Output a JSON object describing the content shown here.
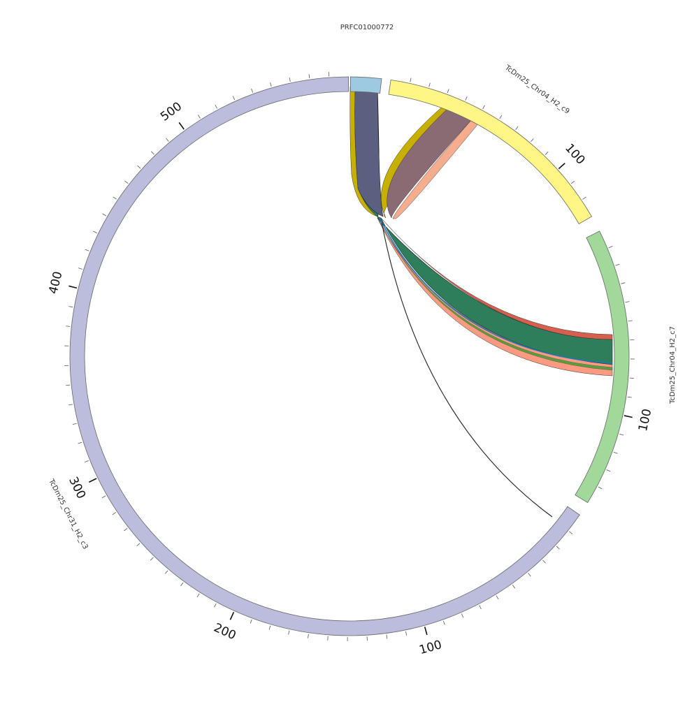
{
  "contigs": [
    {
      "name": "PRFC01000772",
      "color": "#9ecae1",
      "ticks": []
    },
    {
      "name": "TcDm25_Chr04_H2_c9",
      "color": "#fff685",
      "ticks": [
        {
          "value": 100,
          "label": "100"
        }
      ]
    },
    {
      "name": "TcDm25_Chr04_H2_c7",
      "color": "#a1d99b",
      "ticks": [
        {
          "value": 100,
          "label": "100"
        }
      ]
    },
    {
      "name": "TcDm25_Chr31_H2_c3",
      "color": "#bcbddc",
      "ticks": [
        {
          "value": 100,
          "label": "100"
        },
        {
          "value": 200,
          "label": "200"
        },
        {
          "value": 300,
          "label": "300"
        },
        {
          "value": 400,
          "label": "400"
        },
        {
          "value": 500,
          "label": "500"
        }
      ]
    }
  ],
  "links": [
    {
      "source": "PRFC01000772",
      "target": "TcDm25_Chr04_H2_c9",
      "colors": [
        "#c7b000",
        "#e0d21a",
        "#8b6b73",
        "#7a7f8c",
        "#f4a582"
      ]
    },
    {
      "source": "PRFC01000772",
      "target": "TcDm25_Chr04_H2_c7",
      "colors": [
        "#c7b000",
        "#5b5f80",
        "#2e7d5b",
        "#1f78b4",
        "#33a02c",
        "#fb9a80",
        "#d6604d"
      ]
    },
    {
      "source": "PRFC01000772",
      "target": "TcDm25_Chr31_H2_c3",
      "colors": [
        "#222222"
      ]
    }
  ]
}
